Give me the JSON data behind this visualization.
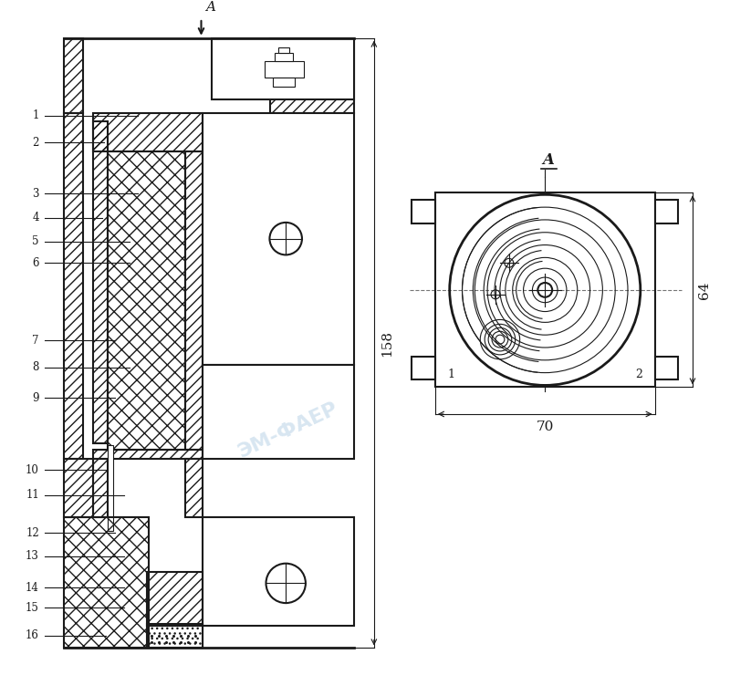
{
  "bg_color": "#ffffff",
  "line_color": "#1a1a1a",
  "dim_158": "158",
  "dim_64": "64",
  "dim_70": "70",
  "label_A": "A",
  "part_labels": [
    "1",
    "2",
    "3",
    "4",
    "5",
    "6",
    "7",
    "8",
    "9",
    "10",
    "11",
    "12",
    "13",
    "14",
    "15",
    "16"
  ]
}
